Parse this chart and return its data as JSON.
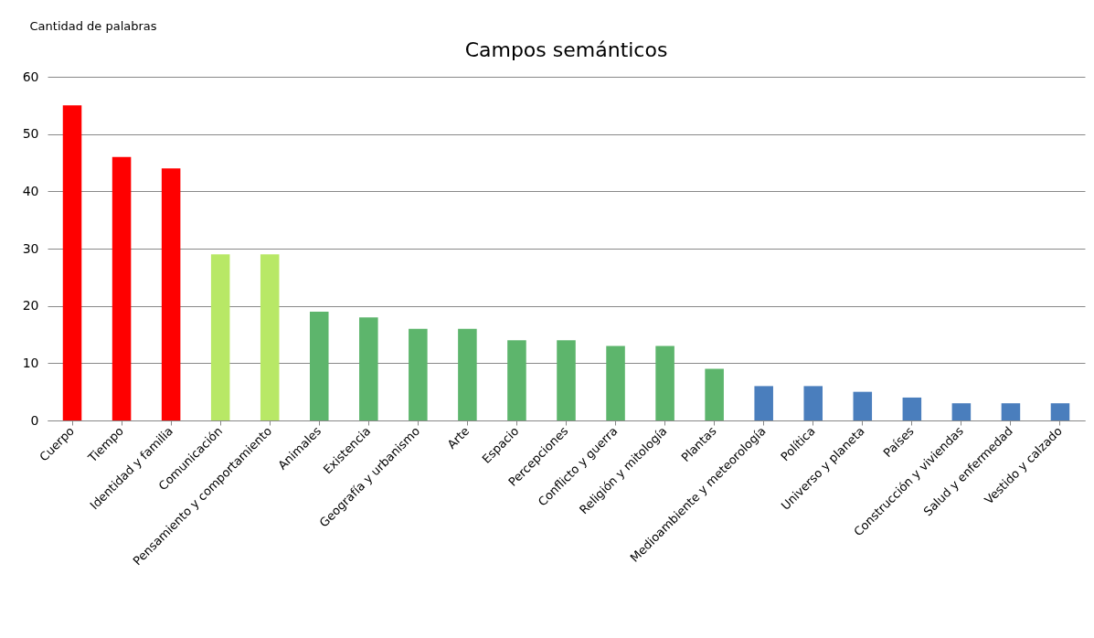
{
  "chart_data": {
    "type": "bar",
    "title": "Campos semánticos",
    "ylabel": "Cantidad de palabras",
    "categories": [
      "Cuerpo",
      "Tiempo",
      "Identidad y familia",
      "Comunicación",
      "Pensamiento y comportamiento",
      "Animales",
      "Existencia",
      "Geografía y urbanismo",
      "Arte",
      "Espacio",
      "Percepciones",
      "Conflicto y guerra",
      "Religión y mitología",
      "Plantas",
      "Medioambiente y meteorología",
      "Política",
      "Universo y planeta",
      "Países",
      "Construcción y viviendas",
      "Salud y enfermedad",
      "Vestido y calzado"
    ],
    "values": [
      55,
      46,
      44,
      29,
      29,
      19,
      18,
      16,
      16,
      14,
      14,
      13,
      13,
      9,
      6,
      6,
      5,
      4,
      3,
      3,
      3
    ],
    "colors": [
      "#ff0000",
      "#ff0000",
      "#ff0000",
      "#b8e866",
      "#b8e866",
      "#5db56c",
      "#5db56c",
      "#5db56c",
      "#5db56c",
      "#5db56c",
      "#5db56c",
      "#5db56c",
      "#5db56c",
      "#5db56c",
      "#4a7ebd",
      "#4a7ebd",
      "#4a7ebd",
      "#4a7ebd",
      "#4a7ebd",
      "#4a7ebd",
      "#4a7ebd"
    ],
    "ylim": [
      0,
      60
    ],
    "yticks": [
      0,
      10,
      20,
      30,
      40,
      50,
      60
    ],
    "grid": "y",
    "legend": false
  }
}
